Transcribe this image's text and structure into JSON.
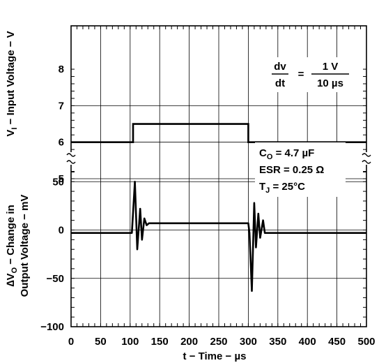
{
  "chart_data": {
    "type": "line",
    "xlabel": "t − Time − µs",
    "x_ticks": [
      0,
      50,
      100,
      150,
      200,
      250,
      300,
      350,
      400,
      450,
      500
    ],
    "xlim": [
      0,
      500
    ],
    "grid": true,
    "top_panel": {
      "ylabel_main": "V",
      "ylabel_sub": "I",
      "ylabel_rest": " − Input Voltage − V",
      "ylim": [
        5,
        8
      ],
      "y_ticks": [
        5,
        6,
        7,
        8
      ],
      "series": [
        {
          "x": [
            0,
            105,
            105,
            300,
            300,
            500
          ],
          "y": [
            6,
            6,
            6.5,
            6.5,
            6,
            6
          ]
        }
      ],
      "annotation": {
        "num_left": "dv",
        "den_left": "dt",
        "equals": "=",
        "num_right": "1 V",
        "den_right": "10 µs"
      }
    },
    "bottom_panel": {
      "ylabel_line1_pre": "∆V",
      "ylabel_line1_sub": "O",
      "ylabel_line1_post": " − Change in",
      "ylabel_line2": "Output Voltage − mV",
      "ylim": [
        -100,
        75
      ],
      "y_ticks": [
        -100,
        -50,
        0,
        50
      ],
      "series": [
        {
          "x": [
            0,
            103,
            108,
            112,
            117,
            120,
            124,
            128,
            132,
            300,
            302,
            306,
            310,
            313,
            317,
            320,
            325,
            328,
            500
          ],
          "y": [
            -3,
            -3,
            50,
            -20,
            22,
            -10,
            12,
            5,
            7,
            7,
            -3,
            -63,
            28,
            -18,
            17,
            -8,
            10,
            -3,
            -3
          ]
        }
      ],
      "annotation": {
        "co_pre": "C",
        "co_sub": "O",
        "co_post": " = 4.7 µF",
        "esr": "ESR = 0.25 Ω",
        "tj_pre": "T",
        "tj_sub": "J",
        "tj_post": " = 25°C"
      }
    }
  }
}
